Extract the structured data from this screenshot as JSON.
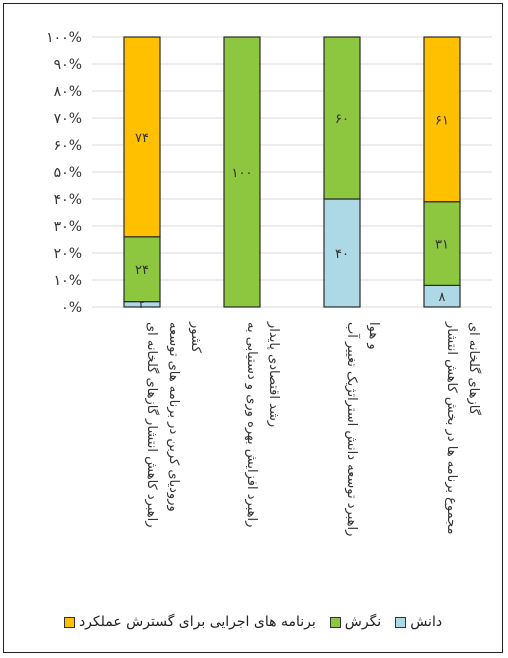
{
  "chart_data": {
    "type": "bar",
    "stacked": true,
    "percent": true,
    "categories": [
      "راهبرد کاهش انتشار گازهای گلخانه ای ورودیای کربن در برنامه های توسعه کشور",
      "راهبرد افزایش بهره وری و دستیابی به رشد اقتصادی پایدار",
      "راهبرد توسعه دانش استراتژیک تغییر آب و هوا",
      "مجموع برنامه ها در بخش کاهش انتشار گازهای گلخانه ای"
    ],
    "series": [
      {
        "name": "دانش",
        "color": "#add8e6",
        "values": [
          2,
          0,
          40,
          8
        ],
        "labels": [
          "۲",
          "",
          "۴۰",
          "۸"
        ]
      },
      {
        "name": "نگرش",
        "color": "#8dc63f",
        "values": [
          24,
          100,
          60,
          31
        ],
        "labels": [
          "۲۴",
          "۱۰۰",
          "۶۰",
          "۳۱"
        ]
      },
      {
        "name": "برنامه های اجرایی برای گسترش عملکرد",
        "color": "#ffc000",
        "values": [
          74,
          0,
          0,
          61
        ],
        "labels": [
          "۷۴",
          "",
          "",
          "۶۱"
        ]
      }
    ],
    "ylim": [
      0,
      100
    ],
    "yticks": [
      "۰%",
      "۱۰%",
      "۲۰%",
      "۳۰%",
      "۴۰%",
      "۵۰%",
      "۶۰%",
      "۷۰%",
      "۸۰%",
      "۹۰%",
      "۱۰۰%"
    ],
    "grid": true,
    "legend": "bottom"
  }
}
